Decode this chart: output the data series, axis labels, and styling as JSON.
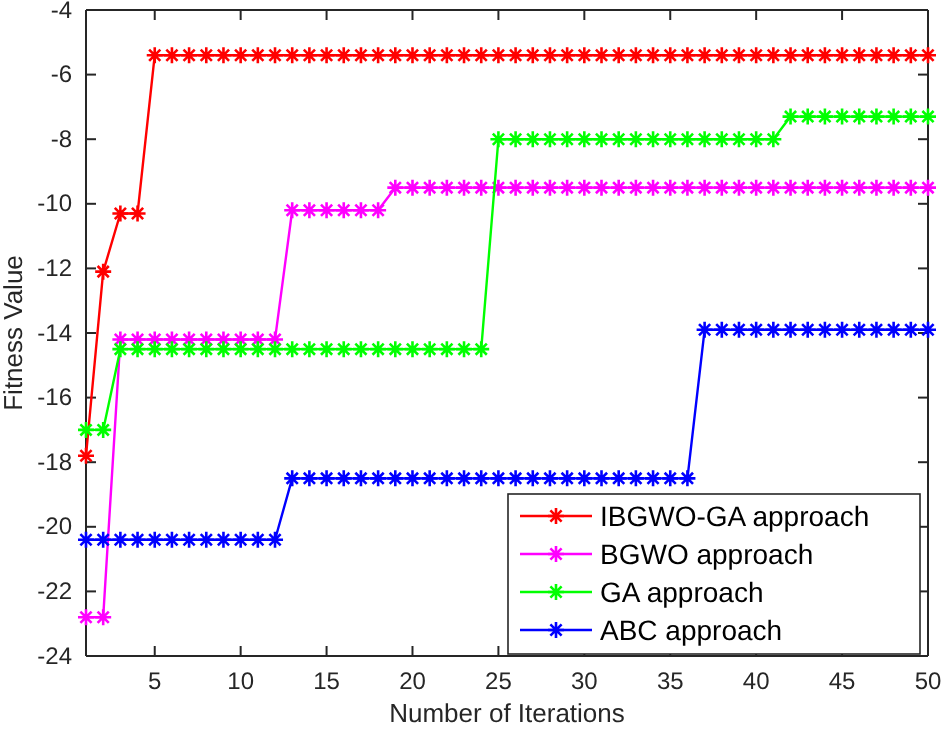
{
  "chart_data": {
    "type": "line",
    "xlabel": "Number of Iterations",
    "ylabel": "Fitness Value",
    "x": [
      1,
      2,
      3,
      4,
      5,
      6,
      7,
      8,
      9,
      10,
      11,
      12,
      13,
      14,
      15,
      16,
      17,
      18,
      19,
      20,
      21,
      22,
      23,
      24,
      25,
      26,
      27,
      28,
      29,
      30,
      31,
      32,
      33,
      34,
      35,
      36,
      37,
      38,
      39,
      40,
      41,
      42,
      43,
      44,
      45,
      46,
      47,
      48,
      49,
      50
    ],
    "xlim": [
      1,
      50
    ],
    "xticks": [
      5,
      10,
      15,
      20,
      25,
      30,
      35,
      40,
      45,
      50
    ],
    "ylim": [
      -24,
      -4
    ],
    "yticks": [
      -24,
      -22,
      -20,
      -18,
      -16,
      -14,
      -12,
      -10,
      -8,
      -6,
      -4
    ],
    "marker": "cross",
    "line_style": "solid",
    "grid": false,
    "legend": "bottom right",
    "series": [
      {
        "name": "IBGWO-GA approach",
        "color": "#ff0000",
        "values": [
          -17.8,
          -12.1,
          -10.3,
          -10.3,
          -5.4,
          -5.4,
          -5.4,
          -5.4,
          -5.4,
          -5.4,
          -5.4,
          -5.4,
          -5.4,
          -5.4,
          -5.4,
          -5.4,
          -5.4,
          -5.4,
          -5.4,
          -5.4,
          -5.4,
          -5.4,
          -5.4,
          -5.4,
          -5.4,
          -5.4,
          -5.4,
          -5.4,
          -5.4,
          -5.4,
          -5.4,
          -5.4,
          -5.4,
          -5.4,
          -5.4,
          -5.4,
          -5.4,
          -5.4,
          -5.4,
          -5.4,
          -5.4,
          -5.4,
          -5.4,
          -5.4,
          -5.4,
          -5.4,
          -5.4,
          -5.4,
          -5.4,
          -5.4
        ]
      },
      {
        "name": "BGWO approach",
        "color": "#ff00ff",
        "values": [
          -22.8,
          -22.8,
          -14.2,
          -14.2,
          -14.2,
          -14.2,
          -14.2,
          -14.2,
          -14.2,
          -14.2,
          -14.2,
          -14.2,
          -10.2,
          -10.2,
          -10.2,
          -10.2,
          -10.2,
          -10.2,
          -9.5,
          -9.5,
          -9.5,
          -9.5,
          -9.5,
          -9.5,
          -9.5,
          -9.5,
          -9.5,
          -9.5,
          -9.5,
          -9.5,
          -9.5,
          -9.5,
          -9.5,
          -9.5,
          -9.5,
          -9.5,
          -9.5,
          -9.5,
          -9.5,
          -9.5,
          -9.5,
          -9.5,
          -9.5,
          -9.5,
          -9.5,
          -9.5,
          -9.5,
          -9.5,
          -9.5,
          -9.5
        ]
      },
      {
        "name": "GA approach",
        "color": "#00ff00",
        "values": [
          -17,
          -17,
          -14.5,
          -14.5,
          -14.5,
          -14.5,
          -14.5,
          -14.5,
          -14.5,
          -14.5,
          -14.5,
          -14.5,
          -14.5,
          -14.5,
          -14.5,
          -14.5,
          -14.5,
          -14.5,
          -14.5,
          -14.5,
          -14.5,
          -14.5,
          -14.5,
          -14.5,
          -8,
          -8,
          -8,
          -8,
          -8,
          -8,
          -8,
          -8,
          -8,
          -8,
          -8,
          -8,
          -8,
          -8,
          -8,
          -8,
          -8,
          -7.3,
          -7.3,
          -7.3,
          -7.3,
          -7.3,
          -7.3,
          -7.3,
          -7.3,
          -7.3
        ]
      },
      {
        "name": "ABC approach",
        "color": "#0000ff",
        "values": [
          -20.4,
          -20.4,
          -20.4,
          -20.4,
          -20.4,
          -20.4,
          -20.4,
          -20.4,
          -20.4,
          -20.4,
          -20.4,
          -20.4,
          -18.5,
          -18.5,
          -18.5,
          -18.5,
          -18.5,
          -18.5,
          -18.5,
          -18.5,
          -18.5,
          -18.5,
          -18.5,
          -18.5,
          -18.5,
          -18.5,
          -18.5,
          -18.5,
          -18.5,
          -18.5,
          -18.5,
          -18.5,
          -18.5,
          -18.5,
          -18.5,
          -18.5,
          -13.9,
          -13.9,
          -13.9,
          -13.9,
          -13.9,
          -13.9,
          -13.9,
          -13.9,
          -13.9,
          -13.9,
          -13.9,
          -13.9,
          -13.9,
          -13.9
        ]
      }
    ]
  }
}
